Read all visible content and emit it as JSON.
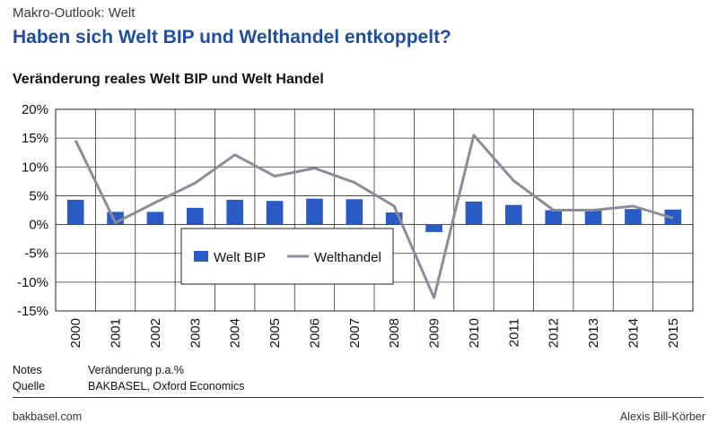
{
  "header": {
    "section": "Makro-Outlook: Welt",
    "headline": "Haben sich Welt BIP und Welthandel entkoppelt?"
  },
  "chart_data": {
    "type": "bar",
    "title": "Veränderung reales Welt BIP und Welt Handel",
    "categories": [
      "2000",
      "2001",
      "2002",
      "2003",
      "2004",
      "2005",
      "2006",
      "2007",
      "2008",
      "2009",
      "2010",
      "2011",
      "2012",
      "2013",
      "2014",
      "2015"
    ],
    "series": [
      {
        "name": "Welt BIP",
        "type": "bar",
        "color": "#2a5bc4",
        "values": [
          4.3,
          2.2,
          2.2,
          2.9,
          4.3,
          4.1,
          4.5,
          4.4,
          2.1,
          -1.3,
          4.0,
          3.4,
          2.5,
          2.4,
          2.7,
          2.6
        ]
      },
      {
        "name": "Welthandel",
        "type": "line",
        "color": "#8c8c9a",
        "values": [
          14.6,
          0.3,
          3.8,
          7.2,
          12.1,
          8.4,
          9.8,
          7.3,
          3.2,
          -12.7,
          15.5,
          7.6,
          2.5,
          2.5,
          3.2,
          1.1
        ]
      }
    ],
    "y_ticks": [
      "20%",
      "15%",
      "10%",
      "5%",
      "0%",
      "-5%",
      "-10%",
      "-15%"
    ],
    "ylim": [
      -15,
      20
    ],
    "y_step": 5,
    "grid": true,
    "legend_position": "center"
  },
  "notes": {
    "notes_label": "Notes",
    "notes_value": "Veränderung p.a.%",
    "source_label": "Quelle",
    "source_value": "BAKBASEL, Oxford Economics"
  },
  "footer": {
    "left": "bakbasel.com",
    "right": "Alexis Bill-Körber"
  }
}
